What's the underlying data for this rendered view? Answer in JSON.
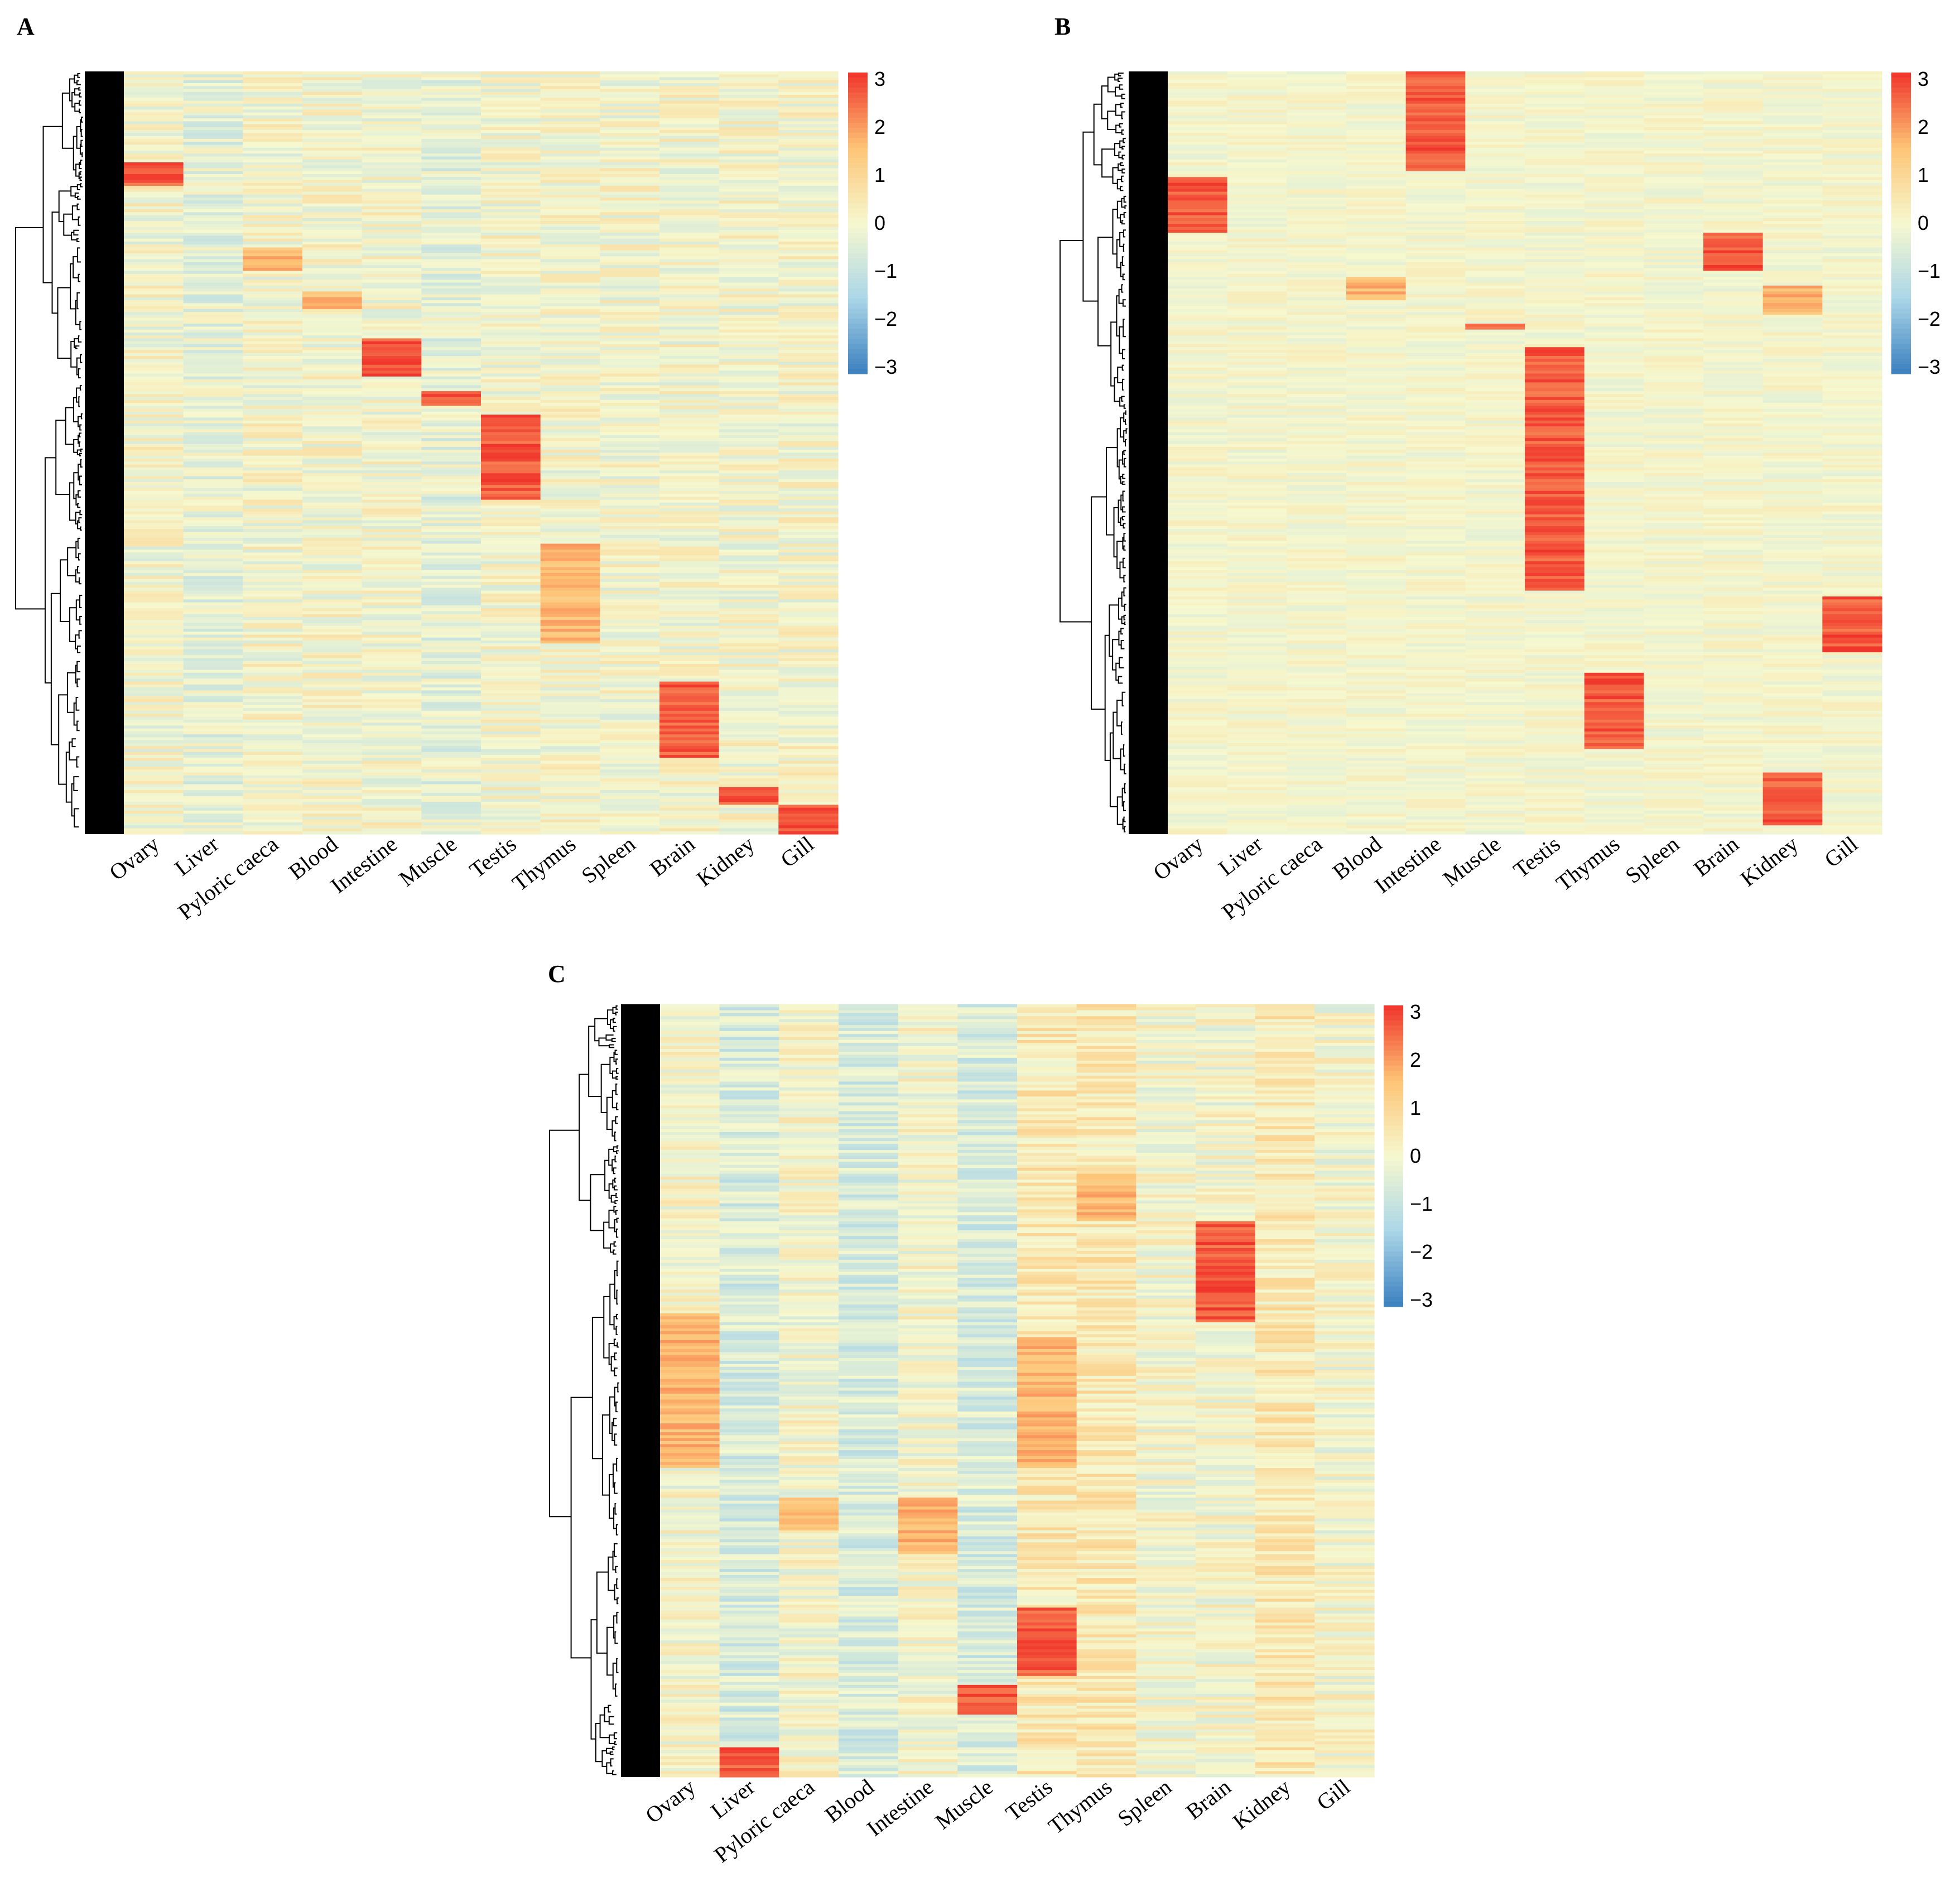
{
  "figure": {
    "colors": {
      "low": "#3a7fbf",
      "mid": "#f6f8cf",
      "high": "#f0332a"
    },
    "legend_ticks": [
      "3",
      "2",
      "1",
      "0",
      "−1",
      "−2",
      "−3"
    ]
  },
  "chart_data": [
    {
      "type": "heatmap",
      "panel_label": "A",
      "columns": [
        "Ovary",
        "Liver",
        "Pyloric caeca",
        "Blood",
        "Intestine",
        "Muscle",
        "Testis",
        "Thymus",
        "Spleen",
        "Brain",
        "Kidney",
        "Gill"
      ],
      "color_scale": {
        "min": -3,
        "max": 3,
        "ticks": [
          3,
          2,
          1,
          0,
          -1,
          -2,
          -3
        ]
      },
      "row_dendrogram": true,
      "high_expression_blocks": [
        {
          "column": "Ovary",
          "row_fraction": [
            0.12,
            0.15
          ],
          "z": 3
        },
        {
          "column": "Pyloric caeca",
          "row_fraction": [
            0.23,
            0.26
          ],
          "z": 2
        },
        {
          "column": "Blood",
          "row_fraction": [
            0.29,
            0.31
          ],
          "z": 2
        },
        {
          "column": "Intestine",
          "row_fraction": [
            0.35,
            0.4
          ],
          "z": 3
        },
        {
          "column": "Muscle",
          "row_fraction": [
            0.42,
            0.44
          ],
          "z": 3
        },
        {
          "column": "Testis",
          "row_fraction": [
            0.45,
            0.56
          ],
          "z": 3
        },
        {
          "column": "Thymus",
          "row_fraction": [
            0.62,
            0.75
          ],
          "z": 2
        },
        {
          "column": "Brain",
          "row_fraction": [
            0.8,
            0.9
          ],
          "z": 3
        },
        {
          "column": "Kidney",
          "row_fraction": [
            0.94,
            0.96
          ],
          "z": 3
        },
        {
          "column": "Gill",
          "row_fraction": [
            0.96,
            1.0
          ],
          "z": 3
        }
      ]
    },
    {
      "type": "heatmap",
      "panel_label": "B",
      "columns": [
        "Ovary",
        "Liver",
        "Pyloric caeca",
        "Blood",
        "Intestine",
        "Muscle",
        "Testis",
        "Thymus",
        "Spleen",
        "Brain",
        "Kidney",
        "Gill"
      ],
      "color_scale": {
        "min": -3,
        "max": 3,
        "ticks": [
          3,
          2,
          1,
          0,
          -1,
          -2,
          -3
        ]
      },
      "row_dendrogram": true,
      "high_expression_blocks": [
        {
          "column": "Intestine",
          "row_fraction": [
            0.0,
            0.13
          ],
          "z": 3
        },
        {
          "column": "Ovary",
          "row_fraction": [
            0.14,
            0.21
          ],
          "z": 3
        },
        {
          "column": "Brain",
          "row_fraction": [
            0.21,
            0.26
          ],
          "z": 3
        },
        {
          "column": "Blood",
          "row_fraction": [
            0.27,
            0.3
          ],
          "z": 2
        },
        {
          "column": "Kidney",
          "row_fraction": [
            0.28,
            0.32
          ],
          "z": 2
        },
        {
          "column": "Muscle",
          "row_fraction": [
            0.33,
            0.34
          ],
          "z": 3
        },
        {
          "column": "Testis",
          "row_fraction": [
            0.36,
            0.68
          ],
          "z": 3
        },
        {
          "column": "Gill",
          "row_fraction": [
            0.69,
            0.76
          ],
          "z": 3
        },
        {
          "column": "Thymus",
          "row_fraction": [
            0.79,
            0.89
          ],
          "z": 3
        },
        {
          "column": "Kidney",
          "row_fraction": [
            0.92,
            0.99
          ],
          "z": 3
        }
      ]
    },
    {
      "type": "heatmap",
      "panel_label": "C",
      "columns": [
        "Ovary",
        "Liver",
        "Pyloric caeca",
        "Blood",
        "Intestine",
        "Muscle",
        "Testis",
        "Thymus",
        "Spleen",
        "Brain",
        "Kidney",
        "Gill"
      ],
      "color_scale": {
        "min": -3,
        "max": 3,
        "ticks": [
          3,
          2,
          1,
          0,
          -1,
          -2,
          -3
        ]
      },
      "row_dendrogram": true,
      "high_expression_blocks": [
        {
          "column": "Thymus",
          "row_fraction": [
            0.22,
            0.28
          ],
          "z": 2
        },
        {
          "column": "Brain",
          "row_fraction": [
            0.28,
            0.41
          ],
          "z": 3
        },
        {
          "column": "Ovary",
          "row_fraction": [
            0.4,
            0.6
          ],
          "z": 2
        },
        {
          "column": "Testis",
          "row_fraction": [
            0.43,
            0.6
          ],
          "z": 2
        },
        {
          "column": "Pyloric caeca",
          "row_fraction": [
            0.64,
            0.68
          ],
          "z": 2
        },
        {
          "column": "Intestine",
          "row_fraction": [
            0.64,
            0.71
          ],
          "z": 2
        },
        {
          "column": "Testis",
          "row_fraction": [
            0.78,
            0.87
          ],
          "z": 3
        },
        {
          "column": "Muscle",
          "row_fraction": [
            0.88,
            0.92
          ],
          "z": 3
        },
        {
          "column": "Liver",
          "row_fraction": [
            0.96,
            1.0
          ],
          "z": 3
        }
      ]
    }
  ]
}
